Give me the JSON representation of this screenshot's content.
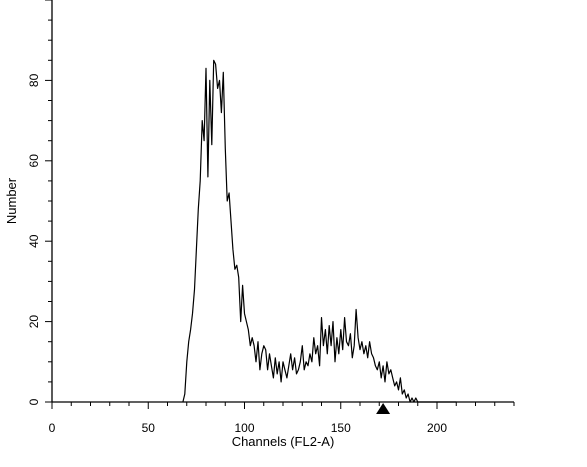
{
  "chart_data": {
    "type": "line",
    "xlabel": "Channels (FL2-A)",
    "ylabel": "Number",
    "xlim": [
      0,
      240
    ],
    "ylim": [
      0,
      100
    ],
    "x_ticks": [
      0,
      50,
      100,
      150,
      200
    ],
    "y_ticks": [
      0,
      20,
      40,
      60,
      80
    ],
    "grid": false,
    "legend": "none",
    "marker": {
      "shape": "triangle-up",
      "x": 172
    },
    "series": [
      {
        "line_color": "#000000",
        "x": [
          68,
          69,
          70,
          71,
          72,
          73,
          74,
          75,
          76,
          77,
          78,
          79,
          80,
          81,
          82,
          83,
          84,
          85,
          86,
          87,
          88,
          89,
          90,
          91,
          92,
          93,
          94,
          95,
          96,
          97,
          98,
          99,
          100,
          101,
          102,
          103,
          104,
          105,
          106,
          107,
          108,
          109,
          110,
          111,
          112,
          113,
          114,
          115,
          116,
          117,
          118,
          119,
          120,
          121,
          122,
          123,
          124,
          125,
          126,
          127,
          128,
          129,
          130,
          131,
          132,
          133,
          134,
          135,
          136,
          137,
          138,
          139,
          140,
          141,
          142,
          143,
          144,
          145,
          146,
          147,
          148,
          149,
          150,
          151,
          152,
          153,
          154,
          155,
          156,
          157,
          158,
          159,
          160,
          161,
          162,
          163,
          164,
          165,
          166,
          167,
          168,
          169,
          170,
          171,
          172,
          173,
          174,
          175,
          176,
          177,
          178,
          179,
          180,
          181,
          182,
          183,
          184,
          185,
          186,
          187,
          188,
          189,
          190,
          191,
          192,
          193,
          194,
          195,
          196,
          197,
          198,
          199,
          200,
          201,
          202,
          203,
          204,
          205,
          206,
          207,
          208,
          209,
          210
        ],
        "y": [
          0,
          2,
          10,
          15,
          18,
          22,
          28,
          38,
          48,
          55,
          70,
          65,
          83,
          56,
          80,
          64,
          85,
          84,
          78,
          80,
          72,
          82,
          63,
          50,
          52,
          45,
          38,
          33,
          34,
          31,
          20,
          29,
          22,
          20,
          18,
          14,
          16,
          14,
          10,
          15,
          8,
          12,
          14,
          13,
          8,
          12,
          9,
          6,
          11,
          7,
          10,
          5,
          10,
          8,
          6,
          9,
          12,
          8,
          11,
          7,
          8,
          10,
          14,
          8,
          10,
          9,
          12,
          10,
          16,
          12,
          14,
          9,
          21,
          14,
          18,
          12,
          19,
          14,
          20,
          10,
          16,
          12,
          18,
          13,
          21,
          15,
          14,
          17,
          11,
          14,
          23,
          16,
          13,
          15,
          12,
          14,
          11,
          15,
          12,
          11,
          9,
          8,
          10,
          6,
          9,
          5,
          10,
          7,
          8,
          6,
          4,
          5,
          3,
          6,
          2,
          3,
          1,
          2,
          0,
          1,
          0,
          1,
          0,
          0,
          0,
          0,
          0,
          0,
          0,
          0,
          0,
          0,
          0,
          0,
          0,
          0,
          0,
          0,
          0,
          0,
          0,
          0,
          0
        ]
      }
    ]
  }
}
